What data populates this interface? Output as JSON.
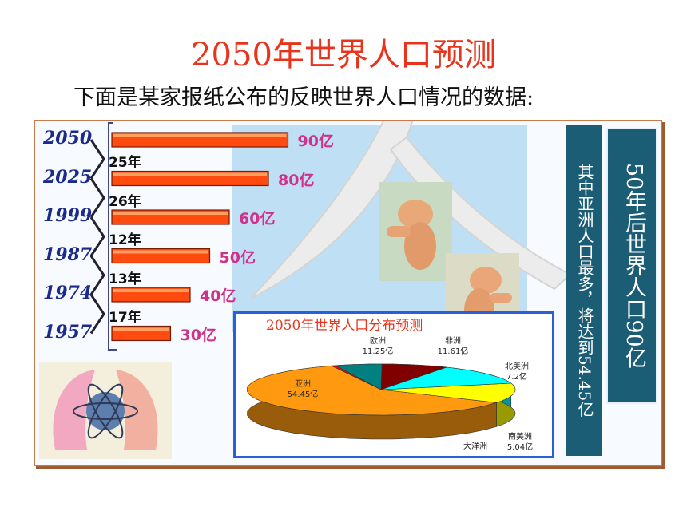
{
  "title": "2050年世界人口预测",
  "subtitle": "下面是某家报纸公布的反映世界人口情况的数据:",
  "side_text": {
    "main": "50年后世界人口90亿",
    "secondary": "其中亚洲人口最多，将达到54.45亿"
  },
  "chart_data": [
    {
      "type": "bar",
      "orientation": "horizontal",
      "categories": [
        "2050",
        "2025",
        "1999",
        "1987",
        "1974",
        "1957"
      ],
      "values": [
        90,
        80,
        60,
        50,
        40,
        30
      ],
      "value_labels": [
        "90亿",
        "80亿",
        "60亿",
        "50亿",
        "40亿",
        "30亿"
      ],
      "interval_labels": [
        "25年",
        "26年",
        "12年",
        "13年",
        "17年"
      ],
      "bar_color": "#ff4a10",
      "value_color": "#d0318a",
      "year_color": "#1c2a8c"
    },
    {
      "type": "pie",
      "title": "2050年世界人口分布预测",
      "slices": [
        {
          "name": "亚洲",
          "value": 54.45,
          "label": "54.45亿",
          "color": "#ff9a10"
        },
        {
          "name": "欧洲",
          "value": 11.25,
          "label": "11.25亿",
          "color": "#ffff00"
        },
        {
          "name": "非洲",
          "value": 11.61,
          "label": "11.61亿",
          "color": "#00ffff"
        },
        {
          "name": "北美洲",
          "value": 7.2,
          "label": "7.2亿",
          "color": "#800000"
        },
        {
          "name": "南美洲",
          "value": 5.04,
          "label": "5.04亿",
          "color": "#008080"
        },
        {
          "name": "大洋洲",
          "value": 0.45,
          "label": "",
          "color": "#ff0000"
        }
      ]
    }
  ]
}
